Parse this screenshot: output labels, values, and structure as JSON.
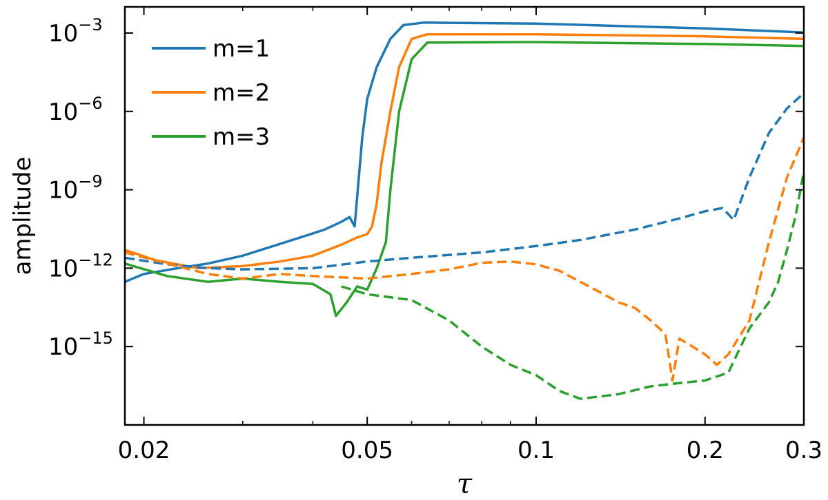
{
  "chart_data": {
    "type": "line",
    "xlabel": "τ",
    "ylabel": "amplitude",
    "xscale": "log",
    "yscale": "log",
    "xlim": [
      0.0185,
      0.3
    ],
    "ylim": [
      1e-18,
      0.01
    ],
    "xticks": [
      {
        "value": 0.02,
        "label": "0.02"
      },
      {
        "value": 0.05,
        "label": "0.05"
      },
      {
        "value": 0.1,
        "label": "0.1"
      },
      {
        "value": 0.2,
        "label": "0.2"
      },
      {
        "value": 0.3,
        "label": "0.3"
      }
    ],
    "yticks": [
      {
        "value": 0.001,
        "base": "10",
        "exp": "−3"
      },
      {
        "value": 1e-06,
        "base": "10",
        "exp": "−6"
      },
      {
        "value": 1e-09,
        "base": "10",
        "exp": "−9"
      },
      {
        "value": 1e-12,
        "base": "10",
        "exp": "−12"
      },
      {
        "value": 1e-15,
        "base": "10",
        "exp": "−15"
      }
    ],
    "legend": {
      "placement": "top-left"
    },
    "series": [
      {
        "name": "m=1",
        "color": "#1f77b4",
        "style": "solid",
        "points": [
          [
            0.0185,
            3e-13
          ],
          [
            0.02,
            6e-13
          ],
          [
            0.023,
            1e-12
          ],
          [
            0.026,
            1.5e-12
          ],
          [
            0.03,
            3e-12
          ],
          [
            0.034,
            7e-12
          ],
          [
            0.038,
            1.5e-11
          ],
          [
            0.042,
            3e-11
          ],
          [
            0.045,
            6e-11
          ],
          [
            0.0465,
            9e-11
          ],
          [
            0.0475,
            4e-11
          ],
          [
            0.049,
            1e-07
          ],
          [
            0.05,
            3e-06
          ],
          [
            0.052,
            5e-05
          ],
          [
            0.055,
            0.0006
          ],
          [
            0.058,
            0.002
          ],
          [
            0.063,
            0.0025
          ],
          [
            0.1,
            0.0023
          ],
          [
            0.2,
            0.0015
          ],
          [
            0.3,
            0.00105
          ]
        ]
      },
      {
        "name": "m=2",
        "color": "#ff7f0e",
        "style": "solid",
        "points": [
          [
            0.0185,
            5e-12
          ],
          [
            0.021,
            2e-12
          ],
          [
            0.025,
            1e-12
          ],
          [
            0.03,
            1.2e-12
          ],
          [
            0.035,
            1.8e-12
          ],
          [
            0.04,
            3e-12
          ],
          [
            0.045,
            8e-12
          ],
          [
            0.048,
            1.5e-11
          ],
          [
            0.05,
            2e-11
          ],
          [
            0.051,
            4e-11
          ],
          [
            0.052,
            3e-10
          ],
          [
            0.053,
            1e-08
          ],
          [
            0.055,
            1e-06
          ],
          [
            0.057,
            5e-05
          ],
          [
            0.06,
            0.0006
          ],
          [
            0.064,
            0.0009
          ],
          [
            0.1,
            0.0009
          ],
          [
            0.2,
            0.00075
          ],
          [
            0.3,
            0.0006
          ]
        ]
      },
      {
        "name": "m=3",
        "color": "#2ca02c",
        "style": "solid",
        "points": [
          [
            0.0185,
            1.5e-12
          ],
          [
            0.022,
            5e-13
          ],
          [
            0.026,
            3e-13
          ],
          [
            0.03,
            4e-13
          ],
          [
            0.035,
            3e-13
          ],
          [
            0.04,
            2.5e-13
          ],
          [
            0.043,
            1e-13
          ],
          [
            0.044,
            1.5e-14
          ],
          [
            0.046,
            5e-14
          ],
          [
            0.048,
            2e-13
          ],
          [
            0.05,
            1.5e-13
          ],
          [
            0.052,
            1e-12
          ],
          [
            0.054,
            1e-11
          ],
          [
            0.055,
            1e-09
          ],
          [
            0.057,
            1e-06
          ],
          [
            0.06,
            0.0001
          ],
          [
            0.064,
            0.00043
          ],
          [
            0.1,
            0.00045
          ],
          [
            0.2,
            0.00038
          ],
          [
            0.3,
            0.00032
          ]
        ]
      },
      {
        "name": "",
        "color": "#1f77b4",
        "style": "dashed",
        "points": [
          [
            0.0185,
            2.5e-12
          ],
          [
            0.022,
            1.4e-12
          ],
          [
            0.026,
            1e-12
          ],
          [
            0.03,
            9e-13
          ],
          [
            0.04,
            1e-12
          ],
          [
            0.05,
            1.8e-12
          ],
          [
            0.06,
            2.5e-12
          ],
          [
            0.08,
            4e-12
          ],
          [
            0.1,
            7e-12
          ],
          [
            0.12,
            1.2e-11
          ],
          [
            0.15,
            3e-11
          ],
          [
            0.18,
            8e-11
          ],
          [
            0.2,
            1.5e-10
          ],
          [
            0.215,
            2e-10
          ],
          [
            0.225,
            7e-11
          ],
          [
            0.24,
            3e-09
          ],
          [
            0.26,
            1.5e-07
          ],
          [
            0.28,
            1.3e-06
          ],
          [
            0.3,
            5e-06
          ]
        ]
      },
      {
        "name": "",
        "color": "#ff7f0e",
        "style": "dashed",
        "points": [
          [
            0.0185,
            4e-12
          ],
          [
            0.022,
            1.5e-12
          ],
          [
            0.026,
            6e-13
          ],
          [
            0.03,
            4e-13
          ],
          [
            0.035,
            6e-13
          ],
          [
            0.04,
            5e-13
          ],
          [
            0.05,
            4e-13
          ],
          [
            0.06,
            6e-13
          ],
          [
            0.07,
            9e-13
          ],
          [
            0.08,
            1.6e-12
          ],
          [
            0.09,
            1.8e-12
          ],
          [
            0.1,
            1.4e-12
          ],
          [
            0.11,
            8e-13
          ],
          [
            0.13,
            1.2e-13
          ],
          [
            0.14,
            5e-14
          ],
          [
            0.15,
            3e-14
          ],
          [
            0.16,
            1e-14
          ],
          [
            0.17,
            3e-15
          ],
          [
            0.175,
            5e-17
          ],
          [
            0.18,
            2e-15
          ],
          [
            0.19,
            1e-15
          ],
          [
            0.2,
            5e-16
          ],
          [
            0.21,
            2e-16
          ],
          [
            0.22,
            5e-16
          ],
          [
            0.24,
            1e-14
          ],
          [
            0.26,
            1e-11
          ],
          [
            0.28,
            3e-09
          ],
          [
            0.3,
            1e-07
          ]
        ]
      },
      {
        "name": "",
        "color": "#2ca02c",
        "style": "dashed",
        "points": [
          [
            0.045,
            2e-13
          ],
          [
            0.05,
            1e-13
          ],
          [
            0.06,
            6e-14
          ],
          [
            0.07,
            1e-14
          ],
          [
            0.08,
            1e-15
          ],
          [
            0.09,
            2e-16
          ],
          [
            0.1,
            8e-17
          ],
          [
            0.11,
            2e-17
          ],
          [
            0.12,
            1e-17
          ],
          [
            0.14,
            1.5e-17
          ],
          [
            0.16,
            3e-17
          ],
          [
            0.18,
            4e-17
          ],
          [
            0.2,
            5e-17
          ],
          [
            0.22,
            1e-16
          ],
          [
            0.24,
            5e-15
          ],
          [
            0.26,
            5e-14
          ],
          [
            0.27,
            3e-13
          ],
          [
            0.28,
            5e-12
          ],
          [
            0.29,
            1e-10
          ],
          [
            0.3,
            5e-09
          ]
        ]
      }
    ]
  }
}
